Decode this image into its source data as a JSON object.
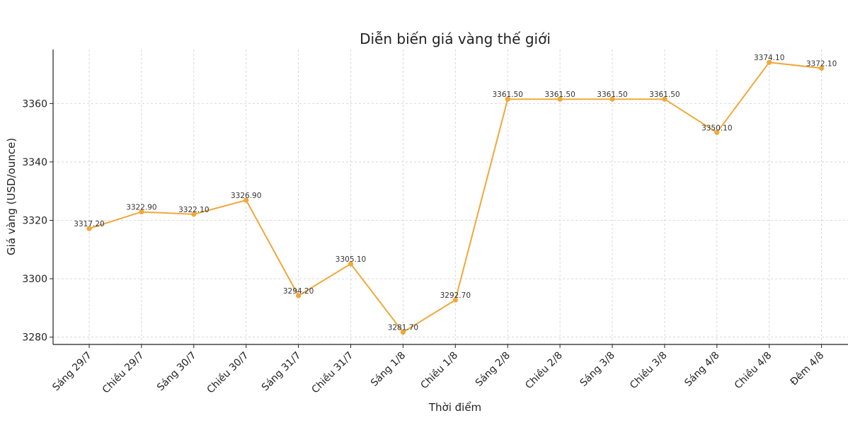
{
  "chart_data": {
    "type": "line",
    "title": "Diễn biến giá vàng thế giới",
    "xlabel": "Thời điểm",
    "ylabel": "Giá vàng (USD/ounce)",
    "categories": [
      "Sáng 29/7",
      "Chiều 29/7",
      "Sáng 30/7",
      "Chiều 30/7",
      "Sáng 31/7",
      "Chiều 31/7",
      "Sáng 1/8",
      "Chiều 1/8",
      "Sáng 2/8",
      "Chiều 2/8",
      "Sáng 3/8",
      "Chiều 3/8",
      "Sáng 4/8",
      "Chiều 4/8",
      "Đêm 4/8"
    ],
    "values": [
      3317.2,
      3322.9,
      3322.1,
      3326.9,
      3294.2,
      3305.1,
      3281.7,
      3292.7,
      3361.5,
      3361.5,
      3361.5,
      3361.5,
      3350.1,
      3374.1,
      3372.1
    ],
    "value_labels": [
      "3317.20",
      "3322.90",
      "3322.10",
      "3326.90",
      "3294.20",
      "3305.10",
      "3281.70",
      "3292.70",
      "3361.50",
      "3361.50",
      "3361.50",
      "3361.50",
      "3350.10",
      "3374.10",
      "3372.10"
    ],
    "yticks": [
      "3280",
      "3300",
      "3320",
      "3340",
      "3360"
    ],
    "ylim": [
      3277.5,
      3378.5
    ],
    "grid": true,
    "line_color": "#f0a83a"
  }
}
